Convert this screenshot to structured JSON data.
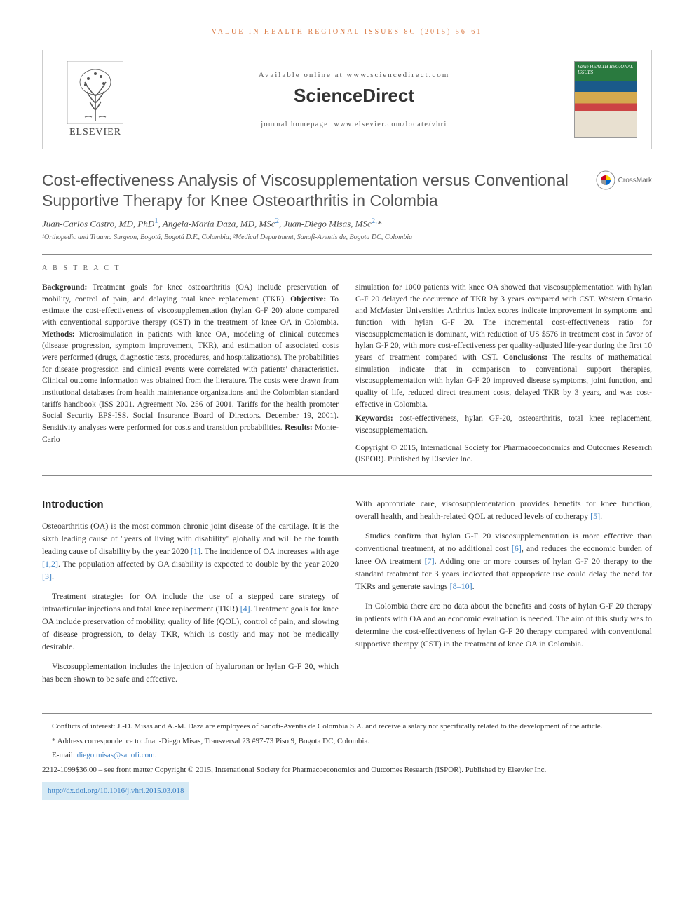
{
  "journal_ref": "VALUE IN HEALTH REGIONAL ISSUES 8C (2015) 56-61",
  "header": {
    "publisher_name": "ELSEVIER",
    "available_online": "Available online at www.sciencedirect.com",
    "sciencedirect": "ScienceDirect",
    "homepage_label": "journal homepage: www.elsevier.com/locate/vhri",
    "cover_title": "Value HEALTH REGIONAL ISSUES"
  },
  "crossmark_label": "CrossMark",
  "title": "Cost-effectiveness Analysis of Viscosupplementation versus Conventional Supportive Therapy for Knee Osteoarthritis in Colombia",
  "authors_html": "Juan-Carlos Castro, MD, PhD<sup>1</sup>, Angela-María Daza, MD, MSc<sup>2</sup>, Juan-Diego Misas, MSc<sup>2,</sup>*",
  "affiliations": "¹Orthopedic and Trauma Surgeon, Bogotá, Bogotá D.F., Colombia; ²Medical Department, Sanofi-Aventis de, Bogota DC, Colombia",
  "abstract_label": "A B S T R A C T",
  "abstract": {
    "col1": "<b>Background:</b> Treatment goals for knee osteoarthritis (OA) include preservation of mobility, control of pain, and delaying total knee replacement (TKR). <b>Objective:</b> To estimate the cost-effectiveness of viscosupplementation (hylan G-F 20) alone compared with conventional supportive therapy (CST) in the treatment of knee OA in Colombia. <b>Methods:</b> Microsimulation in patients with knee OA, modeling of clinical outcomes (disease progression, symptom improvement, TKR), and estimation of associated costs were performed (drugs, diagnostic tests, procedures, and hospitalizations). The probabilities for disease progression and clinical events were correlated with patients' characteristics. Clinical outcome information was obtained from the literature. The costs were drawn from institutional databases from health maintenance organizations and the Colombian standard tariffs handbook (ISS 2001. Agreement No. 256 of 2001. Tariffs for the health promoter Social Security EPS-ISS. Social Insurance Board of Directors. December 19, 2001). Sensitivity analyses were performed for costs and transition probabilities. <b>Results:</b> Monte-Carlo",
    "col2_main": "simulation for 1000 patients with knee OA showed that viscosupplementation with hylan G-F 20 delayed the occurrence of TKR by 3 years compared with CST. Western Ontario and McMaster Universities Arthritis Index scores indicate improvement in symptoms and function with hylan G-F 20. The incremental cost-effectiveness ratio for viscosupplementation is dominant, with reduction of US $576 in treatment cost in favor of hylan G-F 20, with more cost-effectiveness per quality-adjusted life-year during the first 10 years of treatment compared with CST. <b>Conclusions:</b> The results of mathematical simulation indicate that in comparison to conventional support therapies, viscosupplementation with hylan G-F 20 improved disease symptoms, joint function, and quality of life, reduced direct treatment costs, delayed TKR by 3 years, and was cost-effective in Colombia.",
    "keywords": "<b>Keywords:</b> cost-effectiveness, hylan GF-20, osteoarthritis, total knee replacement, viscosupplementation.",
    "copyright": "Copyright © 2015, International Society for Pharmacoeconomics and Outcomes Research (ISPOR). Published by Elsevier Inc."
  },
  "intro_heading": "Introduction",
  "intro": {
    "p1": "Osteoarthritis (OA) is the most common chronic joint disease of the cartilage. It is the sixth leading cause of \"years of living with disability\" globally and will be the fourth leading cause of disability by the year 2020 <span class=\"cite\">[1]</span>. The incidence of OA increases with age <span class=\"cite\">[1,2]</span>. The population affected by OA disability is expected to double by the year 2020 <span class=\"cite\">[3]</span>.",
    "p2": "Treatment strategies for OA include the use of a stepped care strategy of intraarticular injections and total knee replacement (TKR) <span class=\"cite\">[4]</span>. Treatment goals for knee OA include preservation of mobility, quality of life (QOL), control of pain, and slowing of disease progression, to delay TKR, which is costly and may not be medically desirable.",
    "p3": "Viscosupplementation includes the injection of hyaluronan or hylan G-F 20, which has been shown to be safe and effective.",
    "p4": "With appropriate care, viscosupplementation provides benefits for knee function, overall health, and health-related QOL at reduced levels of cotherapy <span class=\"cite\">[5]</span>.",
    "p5": "Studies confirm that hylan G-F 20 viscosupplementation is more effective than conventional treatment, at no additional cost <span class=\"cite\">[6]</span>, and reduces the economic burden of knee OA treatment <span class=\"cite\">[7]</span>. Adding one or more courses of hylan G-F 20 therapy to the standard treatment for 3 years indicated that appropriate use could delay the need for TKRs and generate savings <span class=\"cite\">[8–10]</span>.",
    "p6": "In Colombia there are no data about the benefits and costs of hylan G-F 20 therapy in patients with OA and an economic evaluation is needed. The aim of this study was to determine the cost-effectiveness of hylan G-F 20 therapy compared with conventional supportive therapy (CST) in the treatment of knee OA in Colombia."
  },
  "footnotes": {
    "conflicts": "Conflicts of interest: J.-D. Misas and A.-M. Daza are employees of Sanofi-Aventis de Colombia S.A. and receive a salary not specifically related to the development of the article.",
    "correspondence": "* Address correspondence to: Juan-Diego Misas, Transversal 23 #97-73 Piso 9, Bogota DC, Colombia.",
    "email_label": "E-mail: ",
    "email": "diego.misas@sanofi.com.",
    "issn": "2212-1099$36.00 – see front matter Copyright © 2015, International Society for Pharmacoeconomics and Outcomes Research (ISPOR). Published by Elsevier Inc.",
    "doi": "http://dx.doi.org/10.1016/j.vhri.2015.03.018"
  },
  "colors": {
    "accent_orange": "#d97740",
    "link_blue": "#3a7fc4",
    "doi_bg": "#d6eaf5"
  }
}
